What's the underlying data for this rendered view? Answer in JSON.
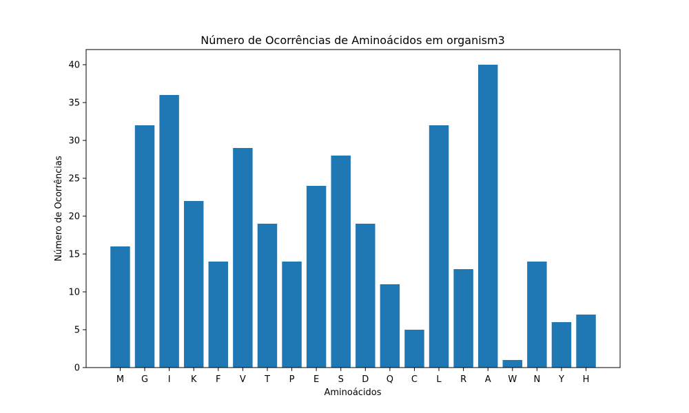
{
  "chart_data": {
    "type": "bar",
    "title": "Número de Ocorrências de Aminoácidos em organism3",
    "xlabel": "Aminoácidos",
    "ylabel": "Número de Ocorrências",
    "categories": [
      "M",
      "G",
      "I",
      "K",
      "F",
      "V",
      "T",
      "P",
      "E",
      "S",
      "D",
      "Q",
      "C",
      "L",
      "R",
      "A",
      "W",
      "N",
      "Y",
      "H"
    ],
    "values": [
      16,
      32,
      36,
      22,
      14,
      29,
      19,
      14,
      24,
      28,
      19,
      11,
      5,
      32,
      13,
      40,
      1,
      14,
      6,
      7
    ],
    "ylim": [
      0,
      42
    ],
    "yticks": [
      0,
      5,
      10,
      15,
      20,
      25,
      30,
      35,
      40
    ],
    "bar_color": "#1f77b4",
    "grid": false,
    "legend": "none"
  }
}
